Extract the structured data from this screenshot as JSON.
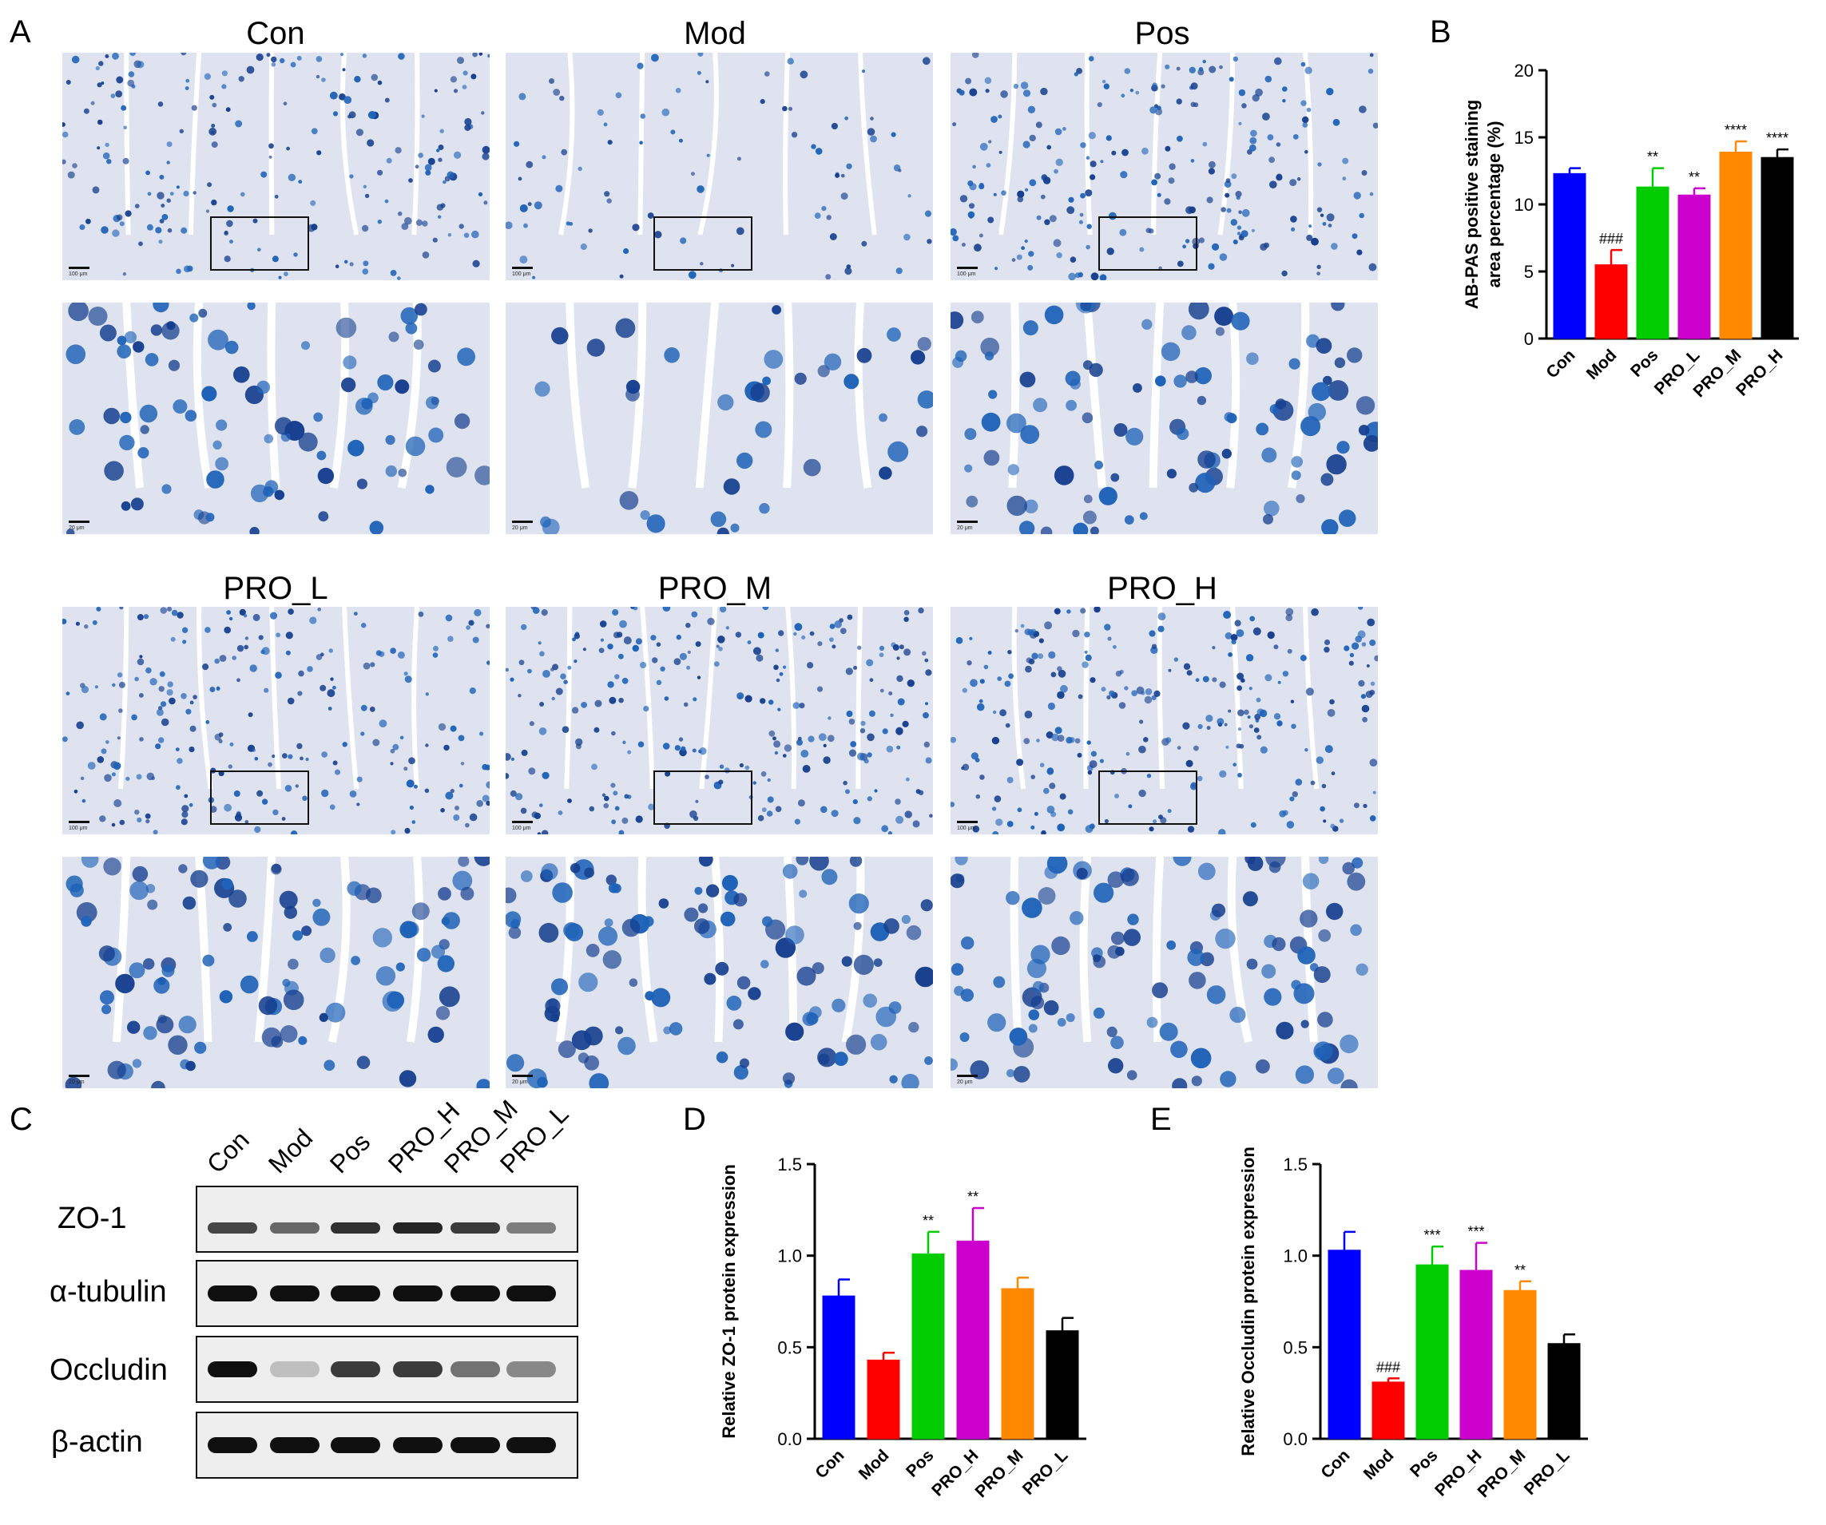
{
  "panels": {
    "a": "A",
    "b": "B",
    "c": "C",
    "d": "D",
    "e": "E"
  },
  "histology": {
    "groups": [
      "Con",
      "Mod",
      "Pos",
      "PRO_L",
      "PRO_M",
      "PRO_H"
    ],
    "scale_top": "100 μm",
    "scale_bottom": "20 μm",
    "stain_colors": {
      "background": "#ecebf3",
      "tissue": "#dfe3ef",
      "goblet": "#1f63b8",
      "goblet_dark": "#163f8f",
      "lumen": "#ffffff"
    }
  },
  "western": {
    "lanes": [
      "Con",
      "Mod",
      "Pos",
      "PRO_H",
      "PRO_M",
      "PRO_L"
    ],
    "proteins": [
      "ZO-1",
      "α-tubulin",
      "Occludin",
      "β-actin"
    ],
    "band_intensity": {
      "ZO-1": [
        0.75,
        0.6,
        0.85,
        0.9,
        0.8,
        0.5
      ],
      "α-tubulin": [
        1,
        1,
        1,
        1,
        1,
        1
      ],
      "Occludin": [
        1,
        0.2,
        0.8,
        0.8,
        0.55,
        0.45
      ],
      "β-actin": [
        1,
        1,
        1,
        1,
        1,
        1
      ]
    }
  },
  "chart_data": [
    {
      "panel": "B",
      "type": "bar",
      "categories": [
        "Con",
        "Mod",
        "Pos",
        "PRO_L",
        "PRO_M",
        "PRO_H"
      ],
      "values": [
        12.3,
        5.5,
        11.3,
        10.7,
        13.9,
        13.5
      ],
      "errors": [
        0.4,
        1.1,
        1.4,
        0.5,
        0.8,
        0.6
      ],
      "colors": [
        "#0000ff",
        "#ff0000",
        "#00cc00",
        "#cc00cc",
        "#ff8800",
        "#000000"
      ],
      "annotations": [
        "",
        "###",
        "**",
        "**",
        "****",
        "****"
      ],
      "ylabel": "AB-PAS positive staining\narea percentage (%)",
      "ylim": [
        0,
        20
      ],
      "yticks": [
        "0",
        "5",
        "10",
        "15",
        "20"
      ]
    },
    {
      "panel": "D",
      "type": "bar",
      "categories": [
        "Con",
        "Mod",
        "Pos",
        "PRO_H",
        "PRO_M",
        "PRO_L"
      ],
      "values": [
        0.78,
        0.43,
        1.01,
        1.08,
        0.82,
        0.59
      ],
      "errors": [
        0.09,
        0.04,
        0.12,
        0.18,
        0.06,
        0.07
      ],
      "colors": [
        "#0000ff",
        "#ff0000",
        "#00cc00",
        "#cc00cc",
        "#ff8800",
        "#000000"
      ],
      "annotations": [
        "",
        "",
        "**",
        "**",
        "",
        ""
      ],
      "ylabel": "Relative ZO-1 protein expression",
      "ylim": [
        0,
        1.5
      ],
      "yticks": [
        "0.0",
        "0.5",
        "1.0",
        "1.5"
      ]
    },
    {
      "panel": "E",
      "type": "bar",
      "categories": [
        "Con",
        "Mod",
        "Pos",
        "PRO_H",
        "PRO_M",
        "PRO_L"
      ],
      "values": [
        1.03,
        0.31,
        0.95,
        0.92,
        0.81,
        0.52
      ],
      "errors": [
        0.1,
        0.02,
        0.1,
        0.15,
        0.05,
        0.05
      ],
      "colors": [
        "#0000ff",
        "#ff0000",
        "#00cc00",
        "#cc00cc",
        "#ff8800",
        "#000000"
      ],
      "annotations": [
        "",
        "###",
        "***",
        "***",
        "**",
        ""
      ],
      "ylabel": "Relative Occludin protein expression",
      "ylim": [
        0,
        1.5
      ],
      "yticks": [
        "0.0",
        "0.5",
        "1.0",
        "1.5"
      ]
    }
  ]
}
